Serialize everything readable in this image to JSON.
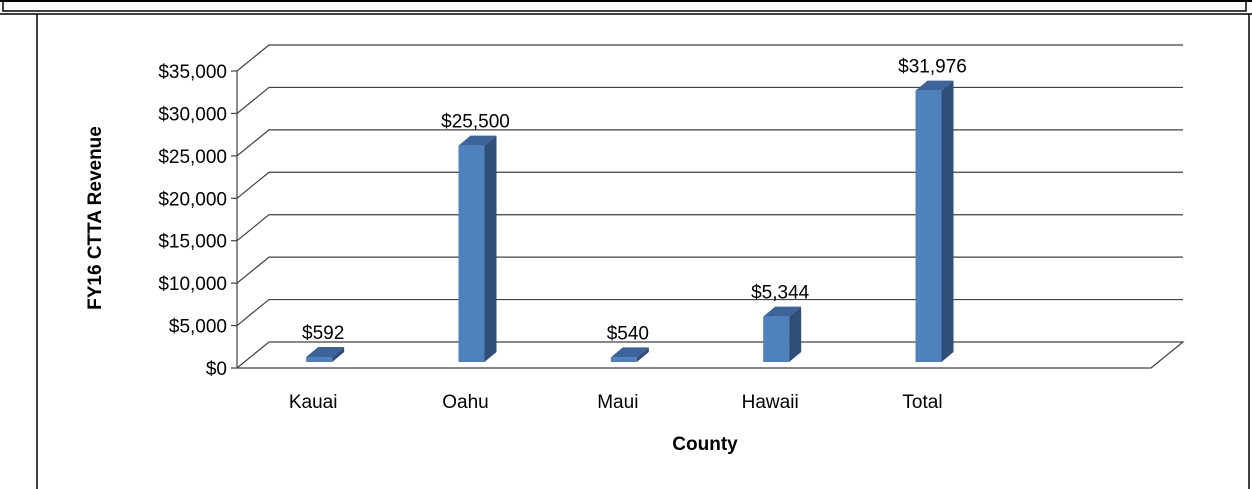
{
  "chart_data": {
    "type": "bar",
    "title": "",
    "xlabel": "County",
    "ylabel": "FY16 CTTA Revenue",
    "categories": [
      "Kauai",
      "Oahu",
      "Maui",
      "Hawaii",
      "Total"
    ],
    "values": [
      592,
      25500,
      540,
      5344,
      31976
    ],
    "data_labels": [
      "$592",
      "$25,500",
      "$540",
      "$5,344",
      "$31,976"
    ],
    "ylim": [
      0,
      35000
    ],
    "y_ticks": [
      0,
      5000,
      10000,
      15000,
      20000,
      25000,
      30000,
      35000
    ],
    "y_tick_labels": [
      "$0",
      "$5,000",
      "$10,000",
      "$15,000",
      "$20,000",
      "$25,000",
      "$30,000",
      "$35,000"
    ],
    "grid": true,
    "legend": "none",
    "style": "3d-column",
    "colors": {
      "bar_front": "#4f81bd",
      "bar_side": "#2f4f7a",
      "bar_top": "#3c639a",
      "grid": "#404040",
      "text": "#000000"
    }
  }
}
